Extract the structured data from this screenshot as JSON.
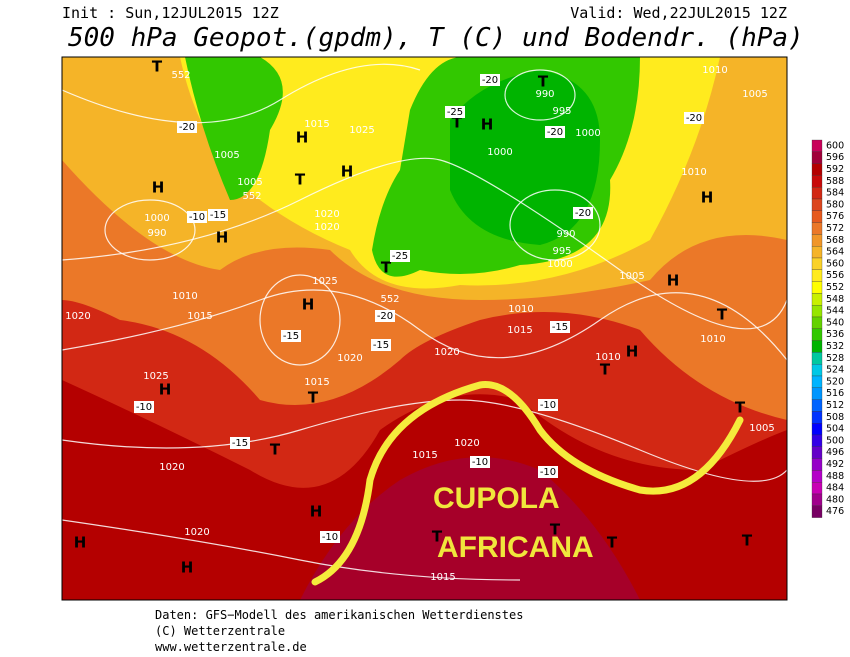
{
  "header": {
    "init": "Init : Sun,12JUL2015 12Z",
    "valid": "Valid: Wed,22JUL2015 12Z",
    "title": "500 hPa Geopot.(gpdm), T (C) und Bodendr. (hPa)"
  },
  "legend": {
    "levels": [
      600,
      596,
      592,
      588,
      584,
      580,
      576,
      572,
      568,
      564,
      560,
      556,
      552,
      548,
      544,
      540,
      536,
      532,
      528,
      524,
      520,
      516,
      512,
      508,
      504,
      500,
      496,
      492,
      488,
      484,
      480,
      476
    ],
    "colors": [
      "#c8005a",
      "#a0003a",
      "#b40000",
      "#c80a0a",
      "#d22814",
      "#dc461e",
      "#e65a1e",
      "#eb7828",
      "#f09628",
      "#f5b428",
      "#fad228",
      "#ffeb1e",
      "#ffff00",
      "#c8f000",
      "#96e600",
      "#64d200",
      "#32c800",
      "#00b400",
      "#00c8a0",
      "#00c8e6",
      "#00b4ff",
      "#0096ff",
      "#0064ff",
      "#0032ff",
      "#0000ff",
      "#3200e6",
      "#6400c8",
      "#9600c8",
      "#b400c8",
      "#c800b4",
      "#a0008c",
      "#780064"
    ]
  },
  "annotation": {
    "lines": [
      "CUPOLA",
      "AFRICANA"
    ]
  },
  "map_labels": [
    "T",
    "552",
    "H",
    "1000",
    "990",
    "H",
    "1005",
    "1005",
    "552",
    "H",
    "1015",
    "1025",
    "H",
    "T",
    "1020",
    "1020",
    "H",
    "1025",
    "1015",
    "1010",
    "1020",
    "1020",
    "1015",
    "T",
    "H",
    "1025",
    "T",
    "1020",
    "1020",
    "H",
    "H",
    "H",
    "T",
    "H",
    "1000",
    "T",
    "990",
    "995",
    "1000",
    "990",
    "995",
    "1000",
    "T",
    "552",
    "1010",
    "1015",
    "1020",
    "1005",
    "1010",
    "H",
    "H",
    "T",
    "1010",
    "T",
    "1010",
    "1005",
    "1010",
    "H",
    "T",
    "1005",
    "1015",
    "1020",
    "1015",
    "T",
    "T",
    "T",
    "T",
    "-20",
    "-10",
    "-15",
    "-15",
    "-15",
    "-10",
    "-20",
    "-15",
    "-10",
    "-10",
    "-10",
    "-10",
    "-20",
    "-20",
    "-20",
    "-25",
    "-25",
    "-20",
    "-15"
  ],
  "footer": [
    "Daten: GFS−Modell des amerikanischen Wetterdienstes",
    "(C) Wetterzentrale",
    "www.wetterzentrale.de"
  ]
}
